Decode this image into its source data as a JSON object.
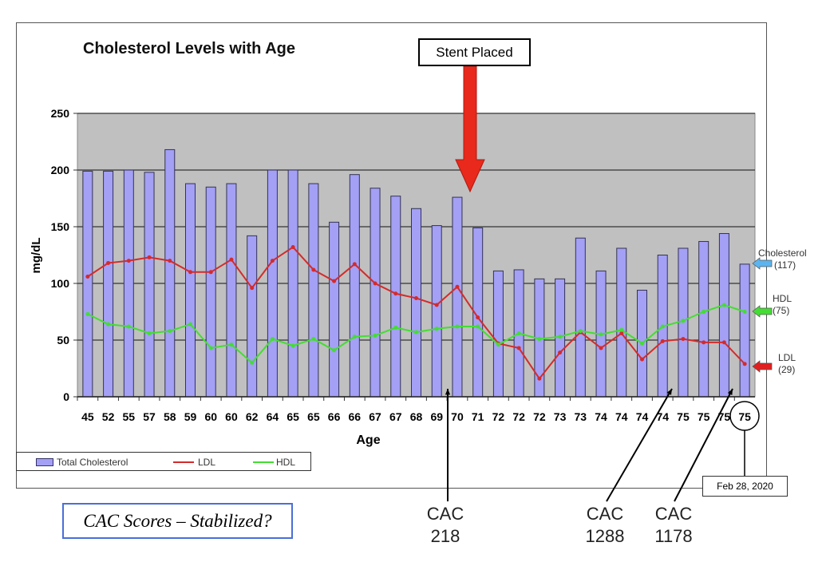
{
  "chart_data": {
    "type": "bar",
    "title": "Cholesterol Levels with Age",
    "xlabel": "Age",
    "ylabel": "mg/dL",
    "ylim": [
      0,
      250
    ],
    "yticks": [
      0,
      50,
      100,
      150,
      200,
      250
    ],
    "grid": true,
    "categories": [
      "45",
      "52",
      "55",
      "57",
      "58",
      "59",
      "60",
      "60",
      "62",
      "64",
      "65",
      "65",
      "66",
      "66",
      "67",
      "67",
      "68",
      "69",
      "70",
      "71",
      "72",
      "72",
      "72",
      "73",
      "73",
      "74",
      "74",
      "74",
      "74",
      "75",
      "75",
      "75",
      "75"
    ],
    "series": [
      {
        "name": "Total Cholesterol",
        "type": "bar",
        "color": "#a3a0f5",
        "values": [
          199,
          199,
          200,
          198,
          218,
          188,
          185,
          188,
          142,
          200,
          200,
          188,
          154,
          196,
          184,
          177,
          166,
          151,
          176,
          149,
          111,
          112,
          104,
          104,
          140,
          111,
          131,
          94,
          125,
          131,
          137,
          144,
          117
        ]
      },
      {
        "name": "LDL",
        "type": "line",
        "color": "#d42b2b",
        "values": [
          106,
          118,
          120,
          123,
          120,
          110,
          110,
          121,
          96,
          120,
          132,
          112,
          102,
          117,
          100,
          91,
          87,
          81,
          97,
          70,
          47,
          43,
          16,
          39,
          57,
          43,
          56,
          33,
          49,
          51,
          48,
          48,
          29
        ]
      },
      {
        "name": "HDL",
        "type": "line",
        "color": "#44dd33",
        "values": [
          73,
          64,
          62,
          56,
          58,
          64,
          43,
          46,
          30,
          51,
          45,
          51,
          41,
          53,
          54,
          61,
          57,
          60,
          62,
          62,
          46,
          56,
          51,
          53,
          58,
          55,
          59,
          47,
          62,
          67,
          75,
          81,
          75
        ]
      }
    ],
    "legend": "bottom",
    "annotations": {
      "stent": "Stent Placed",
      "cac_title": "CAC Scores – Stabilized?",
      "cac": [
        {
          "label": "CAC",
          "value": "218"
        },
        {
          "label": "CAC",
          "value": "1288"
        },
        {
          "label": "CAC",
          "value": "1178"
        }
      ],
      "date": "Feb 28, 2020",
      "side": [
        {
          "name": "Cholesterol",
          "value": "(117)",
          "color": "#5ab4f0"
        },
        {
          "name": "HDL",
          "value": "(75)",
          "color": "#44dd33"
        },
        {
          "name": "LDL",
          "value": "(29)",
          "color": "#e02020"
        }
      ]
    }
  }
}
